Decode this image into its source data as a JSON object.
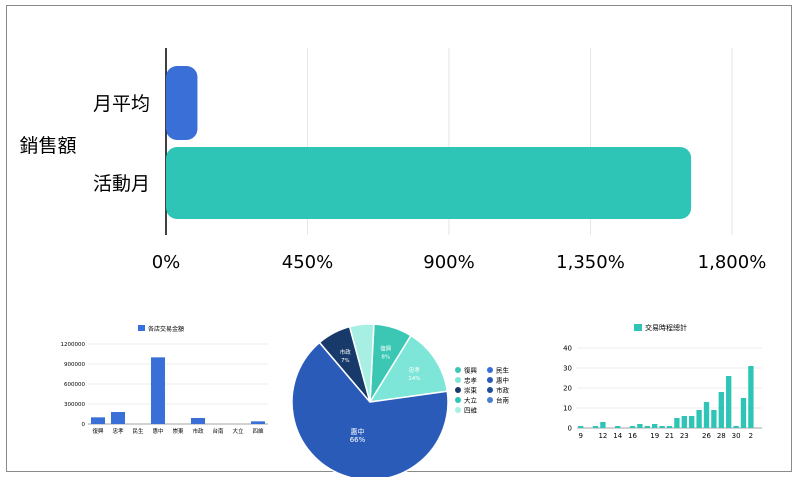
{
  "colors": {
    "blue": "#3a6fd8",
    "teal": "#2ec4b6",
    "navy": "#173a6b",
    "pie_blue": "#2a5bb8",
    "pie_mint": "#7ee6d8",
    "pie_teal": "#3cc7b5",
    "grid": "#e6e6e6",
    "axis": "#000000"
  },
  "chart_data": [
    {
      "type": "bar",
      "orientation": "horizontal",
      "ylabel": "銷售額",
      "categories": [
        "月平均",
        "活動月"
      ],
      "values": [
        100,
        1670
      ],
      "unit": "%",
      "xlim": [
        0,
        1800
      ],
      "xticks": [
        0,
        450,
        900,
        1350,
        1800
      ],
      "xtick_labels": [
        "0%",
        "450%",
        "900%",
        "1,350%",
        "1,800%"
      ],
      "grid": true,
      "colors": [
        "#3a6fd8",
        "#2ec4b6"
      ]
    },
    {
      "type": "bar",
      "legend": [
        "各店交易金額"
      ],
      "categories": [
        "復興",
        "忠孝",
        "民生",
        "惠中",
        "崇東",
        "市政",
        "台南",
        "大立",
        "四維"
      ],
      "values": [
        100000,
        180000,
        0,
        1000000,
        0,
        90000,
        0,
        0,
        40000
      ],
      "ylim": [
        0,
        1200000
      ],
      "yticks": [
        0,
        300000,
        600000,
        900000,
        1200000
      ],
      "ytick_labels": [
        "0",
        "300000",
        "600000",
        "900000",
        "1200000"
      ],
      "grid": true,
      "color": "#3a6fd8"
    },
    {
      "type": "pie",
      "slices": [
        {
          "label": "復興",
          "value": 8,
          "text": "8%",
          "color": "#3cc7b5"
        },
        {
          "label": "忠孝",
          "value": 14,
          "text": "14%",
          "color": "#7ee6d8"
        },
        {
          "label": "惠中",
          "value": 66,
          "text": "66%",
          "color": "#2a5bb8"
        },
        {
          "label": "市政",
          "value": 7,
          "text": "7%",
          "color": "#173a6b"
        },
        {
          "label": "四維",
          "value": 5,
          "text": "",
          "color": "#a8efe3"
        }
      ],
      "legend": [
        {
          "label": "復興",
          "color": "#3cc7b5"
        },
        {
          "label": "民生",
          "color": "#3a6fd8"
        },
        {
          "label": "忠孝",
          "color": "#7ee6d8"
        },
        {
          "label": "惠中",
          "color": "#2a5bb8"
        },
        {
          "label": "崇東",
          "color": "#173a6b"
        },
        {
          "label": "市政",
          "color": "#1f4e9a"
        },
        {
          "label": "大立",
          "color": "#2ec4b6"
        },
        {
          "label": "台南",
          "color": "#4a7fd0"
        },
        {
          "label": "四維",
          "color": "#a8efe3"
        }
      ],
      "legend_placement": "right"
    },
    {
      "type": "bar",
      "legend": [
        "交易時程總計"
      ],
      "categories": [
        "9",
        "10",
        "11",
        "12",
        "13",
        "14",
        "15",
        "16",
        "17",
        "18",
        "19",
        "20",
        "21",
        "22",
        "23",
        "24",
        "25",
        "26",
        "27",
        "28",
        "29",
        "30",
        "1",
        "2",
        "3"
      ],
      "x_tick_labels": [
        "9",
        "12",
        "14",
        "16",
        "19",
        "21",
        "23",
        "26",
        "28",
        "30",
        "2"
      ],
      "values": [
        1,
        0,
        1,
        3,
        0,
        1,
        0,
        1,
        2,
        1,
        2,
        1,
        1,
        5,
        6,
        6,
        9,
        13,
        9,
        18,
        26,
        1,
        15,
        31,
        0
      ],
      "ylim": [
        0,
        40
      ],
      "yticks": [
        0,
        10,
        20,
        30,
        40
      ],
      "grid": true,
      "color": "#2ec4b6"
    }
  ]
}
